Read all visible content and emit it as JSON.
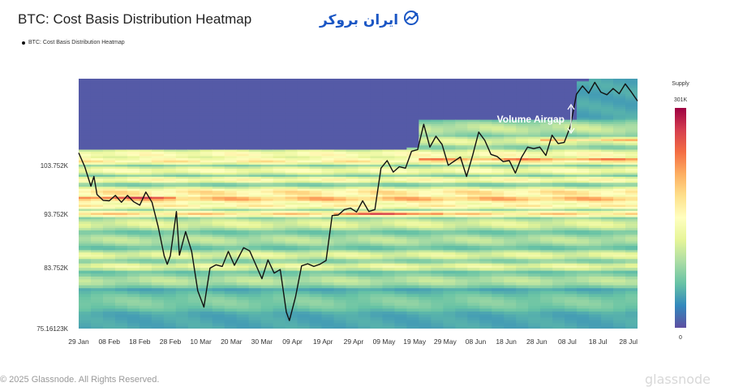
{
  "header": {
    "title": "BTC: Cost Basis Distribution Heatmap",
    "logo_text": "ایران بروکر",
    "legend_label": "BTC: Cost Basis Distribution Heatmap"
  },
  "colorbar": {
    "title": "Supply",
    "max_label": "301K",
    "min_label": "0",
    "colors": [
      "#5e4fa2",
      "#3288bd",
      "#66c2a5",
      "#abdda4",
      "#e6f598",
      "#ffffbf",
      "#fee08b",
      "#fdae61",
      "#f46d43",
      "#d53e4f",
      "#9e0142"
    ]
  },
  "annotation": {
    "text": "Volume Airgap"
  },
  "footer": {
    "copyright": "© 2025 Glassnode. All Rights Reserved."
  },
  "watermark": "glassnode",
  "chart_data": {
    "type": "heatmap",
    "title": "BTC: Cost Basis Distribution Heatmap",
    "x_tick_labels": [
      "29 Jan",
      "08 Feb",
      "18 Feb",
      "28 Feb",
      "10 Mar",
      "20 Mar",
      "30 Mar",
      "09 Apr",
      "19 Apr",
      "29 Apr",
      "09 May",
      "19 May",
      "29 May",
      "08 Jun",
      "18 Jun",
      "28 Jun",
      "08 Jul",
      "18 Jul",
      "28 Jul"
    ],
    "y_tick_labels": [
      "103.752K",
      "93.752K",
      "83.752K",
      "75.16123K"
    ],
    "y_tick_values": [
      103752,
      93752,
      83752,
      75161
    ],
    "ylim": [
      75161,
      120500
    ],
    "xlim": [
      "2025-01-29",
      "2025-07-31"
    ],
    "colorscale_range": [
      0,
      301000
    ],
    "series": [
      {
        "values": [
          [
            "2025-01-29",
            106200
          ],
          [
            "2025-01-31",
            103500
          ],
          [
            "2025-02-02",
            99500
          ],
          [
            "2025-02-03",
            101500
          ],
          [
            "2025-02-04",
            97800
          ],
          [
            "2025-02-06",
            96600
          ],
          [
            "2025-02-08",
            96500
          ],
          [
            "2025-02-10",
            97600
          ],
          [
            "2025-02-12",
            96200
          ],
          [
            "2025-02-14",
            97600
          ],
          [
            "2025-02-16",
            96300
          ],
          [
            "2025-02-18",
            95600
          ],
          [
            "2025-02-20",
            98300
          ],
          [
            "2025-02-22",
            96200
          ],
          [
            "2025-02-24",
            91500
          ],
          [
            "2025-02-26",
            86000
          ],
          [
            "2025-02-27",
            84400
          ],
          [
            "2025-02-28",
            86000
          ],
          [
            "2025-03-02",
            94300
          ],
          [
            "2025-03-03",
            86100
          ],
          [
            "2025-03-05",
            90500
          ],
          [
            "2025-03-07",
            86800
          ],
          [
            "2025-03-09",
            80500
          ],
          [
            "2025-03-11",
            78200
          ],
          [
            "2025-03-13",
            83700
          ],
          [
            "2025-03-15",
            84300
          ],
          [
            "2025-03-17",
            84000
          ],
          [
            "2025-03-19",
            86800
          ],
          [
            "2025-03-21",
            84200
          ],
          [
            "2025-03-24",
            87500
          ],
          [
            "2025-03-26",
            86900
          ],
          [
            "2025-03-28",
            84300
          ],
          [
            "2025-03-30",
            82200
          ],
          [
            "2025-04-01",
            85200
          ],
          [
            "2025-04-03",
            83000
          ],
          [
            "2025-04-05",
            83500
          ],
          [
            "2025-04-07",
            77500
          ],
          [
            "2025-04-08",
            76300
          ],
          [
            "2025-04-10",
            79600
          ],
          [
            "2025-04-12",
            84100
          ],
          [
            "2025-04-14",
            84500
          ],
          [
            "2025-04-16",
            84000
          ],
          [
            "2025-04-18",
            84400
          ],
          [
            "2025-04-20",
            85100
          ],
          [
            "2025-04-22",
            93500
          ],
          [
            "2025-04-24",
            93600
          ],
          [
            "2025-04-26",
            94700
          ],
          [
            "2025-04-28",
            95000
          ],
          [
            "2025-04-30",
            94200
          ],
          [
            "2025-05-02",
            96500
          ],
          [
            "2025-05-04",
            94300
          ],
          [
            "2025-05-06",
            94700
          ],
          [
            "2025-05-08",
            103200
          ],
          [
            "2025-05-10",
            104700
          ],
          [
            "2025-05-12",
            102400
          ],
          [
            "2025-05-14",
            103500
          ],
          [
            "2025-05-16",
            103200
          ],
          [
            "2025-05-18",
            106500
          ],
          [
            "2025-05-20",
            106800
          ],
          [
            "2025-05-22",
            111700
          ],
          [
            "2025-05-24",
            107300
          ],
          [
            "2025-05-26",
            109400
          ],
          [
            "2025-05-28",
            107800
          ],
          [
            "2025-05-30",
            103800
          ],
          [
            "2025-06-01",
            104600
          ],
          [
            "2025-06-03",
            105400
          ],
          [
            "2025-06-05",
            101500
          ],
          [
            "2025-06-07",
            105700
          ],
          [
            "2025-06-09",
            110200
          ],
          [
            "2025-06-11",
            108600
          ],
          [
            "2025-06-13",
            105900
          ],
          [
            "2025-06-15",
            105500
          ],
          [
            "2025-06-17",
            104500
          ],
          [
            "2025-06-19",
            104700
          ],
          [
            "2025-06-21",
            102200
          ],
          [
            "2025-06-23",
            105300
          ],
          [
            "2025-06-25",
            107300
          ],
          [
            "2025-06-27",
            107000
          ],
          [
            "2025-06-29",
            107300
          ],
          [
            "2025-07-01",
            105700
          ],
          [
            "2025-07-03",
            109600
          ],
          [
            "2025-07-05",
            108000
          ],
          [
            "2025-07-07",
            108200
          ],
          [
            "2025-07-09",
            111300
          ],
          [
            "2025-07-11",
            117500
          ],
          [
            "2025-07-13",
            119100
          ],
          [
            "2025-07-15",
            117700
          ],
          [
            "2025-07-17",
            119800
          ],
          [
            "2025-07-19",
            117900
          ],
          [
            "2025-07-21",
            117400
          ],
          [
            "2025-07-23",
            118600
          ],
          [
            "2025-07-25",
            117600
          ],
          [
            "2025-07-27",
            119500
          ],
          [
            "2025-07-29",
            117900
          ],
          [
            "2025-07-31",
            116200
          ]
        ]
      }
    ],
    "bands": [
      {
        "center": 111000,
        "width": 2200,
        "intensity": 0.38
      },
      {
        "center": 108500,
        "width": 1500,
        "intensity": 0.45
      },
      {
        "center": 106000,
        "width": 1400,
        "intensity": 0.55
      },
      {
        "center": 104700,
        "width": 900,
        "intensity": 0.62
      },
      {
        "center": 102800,
        "width": 1300,
        "intensity": 0.52
      },
      {
        "center": 100900,
        "width": 1000,
        "intensity": 0.55
      },
      {
        "center": 98300,
        "width": 1500,
        "intensity": 0.64
      },
      {
        "center": 97000,
        "width": 1200,
        "intensity": 0.75
      },
      {
        "center": 95600,
        "width": 1100,
        "intensity": 0.6
      },
      {
        "center": 93900,
        "width": 800,
        "intensity": 0.68
      },
      {
        "center": 92000,
        "width": 1800,
        "intensity": 0.44
      },
      {
        "center": 89000,
        "width": 2000,
        "intensity": 0.36
      },
      {
        "center": 86200,
        "width": 1400,
        "intensity": 0.45
      },
      {
        "center": 84100,
        "width": 1100,
        "intensity": 0.47
      },
      {
        "center": 82000,
        "width": 1500,
        "intensity": 0.36
      },
      {
        "center": 79000,
        "width": 2500,
        "intensity": 0.27
      }
    ],
    "hot_spots": [
      {
        "center": 97100,
        "from": "2025-01-29",
        "to": "2025-02-28",
        "intensity": 0.96
      },
      {
        "center": 94000,
        "from": "2025-04-22",
        "to": "2025-05-30",
        "intensity": 0.92
      },
      {
        "center": 105000,
        "from": "2025-05-20",
        "to": "2025-07-31",
        "intensity": 0.8
      },
      {
        "center": 108800,
        "from": "2025-07-01",
        "to": "2025-07-31",
        "intensity": 0.7
      }
    ]
  }
}
